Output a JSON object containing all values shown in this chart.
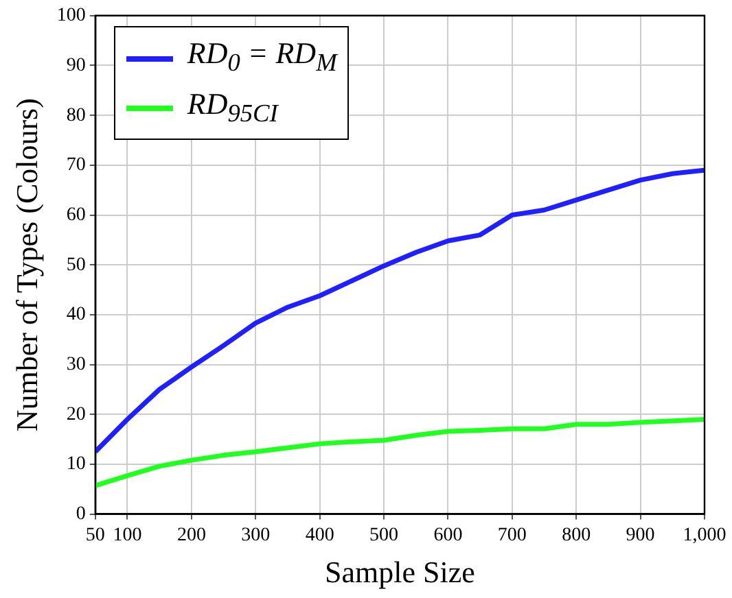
{
  "chart_data": {
    "type": "line",
    "xlabel": "Sample Size",
    "ylabel": "Number of Types (Colours)",
    "x": [
      50,
      100,
      150,
      200,
      250,
      300,
      350,
      400,
      450,
      500,
      550,
      600,
      650,
      700,
      750,
      800,
      850,
      900,
      950,
      1000
    ],
    "series": [
      {
        "name": "RD$_{0}$ = RD$_{M}$",
        "color": "#2020ff",
        "values": [
          12.5,
          19,
          25,
          29.5,
          33.8,
          38.3,
          41.5,
          43.8,
          46.8,
          49.8,
          52.5,
          54.8,
          56,
          60,
          61,
          63,
          65,
          67,
          68.3,
          69
        ]
      },
      {
        "name": "RD$_{95CI}$",
        "color": "#20ff20",
        "values": [
          5.7,
          7.7,
          9.6,
          10.8,
          11.8,
          12.5,
          13.3,
          14.1,
          14.5,
          14.8,
          15.8,
          16.6,
          16.8,
          17.1,
          17.1,
          18,
          18,
          18.4,
          18.7,
          19
        ]
      }
    ],
    "xlim": [
      50,
      1000
    ],
    "xticks": [
      50,
      100,
      200,
      300,
      400,
      500,
      600,
      700,
      800,
      900,
      {
        "value": 1000,
        "label": "1,000"
      }
    ],
    "ylim": [
      0,
      100
    ],
    "yticks": [
      0,
      10,
      20,
      30,
      40,
      50,
      60,
      70,
      80,
      90,
      100
    ],
    "grid": true,
    "legend": "top left",
    "marker": "none",
    "line_style": "solid"
  }
}
